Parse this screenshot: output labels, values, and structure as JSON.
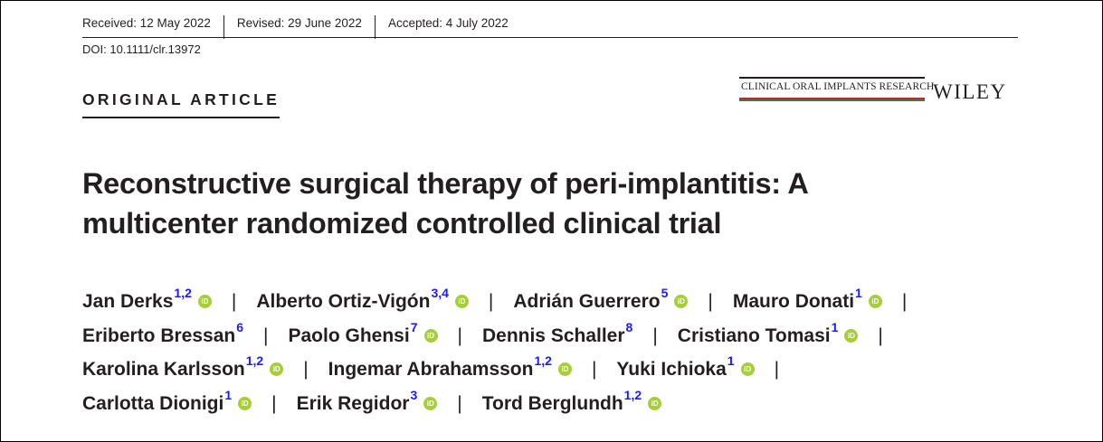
{
  "dates": {
    "received": "Received: 12 May 2022",
    "revised": "Revised: 29 June 2022",
    "accepted": "Accepted: 4 July 2022"
  },
  "doi": "DOI: 10.1111/clr.13972",
  "article_type": "ORIGINAL ARTICLE",
  "journal_name": "CLINICAL ORAL IMPLANTS RESEARCH",
  "publisher": "WILEY",
  "title_line1": "Reconstructive surgical therapy of peri-implantitis: A",
  "title_line2": "multicenter randomized controlled clinical trial",
  "orcid_glyph": "iD",
  "separator": "|",
  "authors": [
    {
      "name": "Jan Derks",
      "aff": "1,2"
    },
    {
      "name": "Alberto Ortiz-Vigón",
      "aff": "3,4"
    },
    {
      "name": "Adrián Guerrero",
      "aff": "5"
    },
    {
      "name": "Mauro Donati",
      "aff": "1"
    },
    {
      "name": "Eriberto Bressan",
      "aff": "6"
    },
    {
      "name": "Paolo Ghensi",
      "aff": "7"
    },
    {
      "name": "Dennis Schaller",
      "aff": "8"
    },
    {
      "name": "Cristiano Tomasi",
      "aff": "1"
    },
    {
      "name": "Karolina Karlsson",
      "aff": "1,2"
    },
    {
      "name": "Ingemar Abrahamsson",
      "aff": "1,2"
    },
    {
      "name": "Yuki Ichioka",
      "aff": "1"
    },
    {
      "name": "Carlotta Dionigi",
      "aff": "1"
    },
    {
      "name": "Erik Regidor",
      "aff": "3"
    },
    {
      "name": "Tord Berglundh",
      "aff": "1,2"
    }
  ],
  "colors": {
    "text": "#231f20",
    "affiliation_link": "#1a1aff",
    "orcid": "#a6ce39",
    "journal_red": "#c0272d",
    "journal_green": "#3a7d44"
  }
}
